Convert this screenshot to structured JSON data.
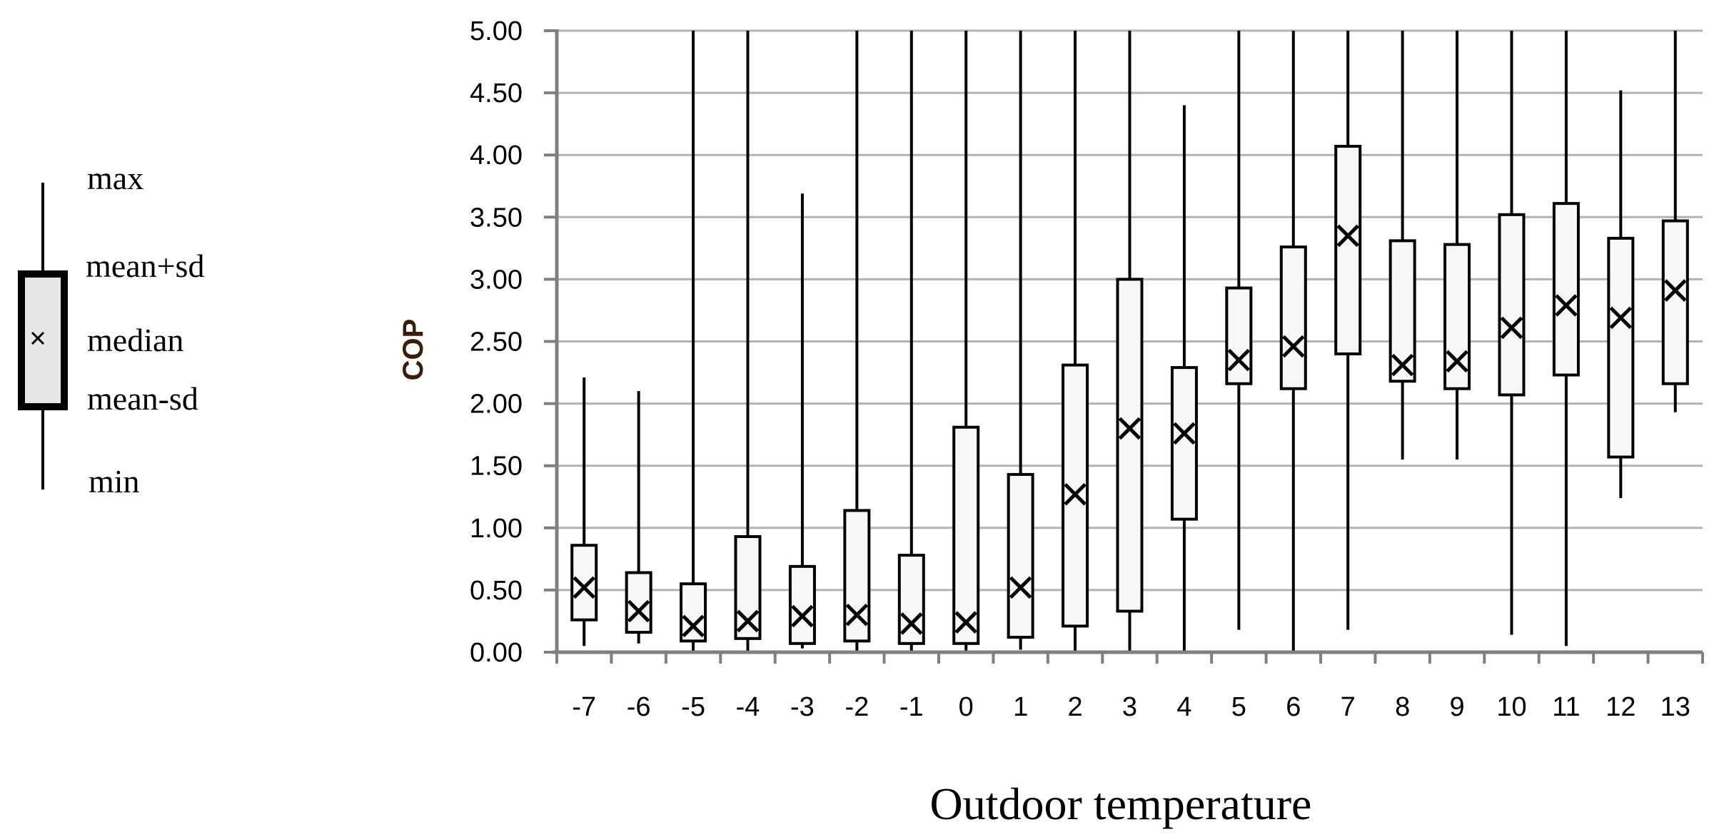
{
  "chart_data": {
    "type": "box",
    "xlabel": "Outdoor temperature",
    "ylabel": "COP",
    "ylim": [
      0,
      5
    ],
    "yticks": [
      "0.00",
      "0.50",
      "1.00",
      "1.50",
      "2.00",
      "2.50",
      "3.00",
      "3.50",
      "4.00",
      "4.50",
      "5.00"
    ],
    "grid": "horizontal",
    "categories": [
      "-7",
      "-6",
      "-5",
      "-4",
      "-3",
      "-2",
      "-1",
      "0",
      "1",
      "2",
      "3",
      "4",
      "5",
      "6",
      "7",
      "8",
      "9",
      "10",
      "11",
      "12",
      "13"
    ],
    "boxes": [
      {
        "min": 0.05,
        "q_low": 0.26,
        "median": 0.52,
        "q_high": 0.86,
        "max": 2.21
      },
      {
        "min": 0.07,
        "q_low": 0.16,
        "median": 0.33,
        "q_high": 0.64,
        "max": 2.1
      },
      {
        "min": 0.0,
        "q_low": 0.09,
        "median": 0.21,
        "q_high": 0.55,
        "max": 5.0
      },
      {
        "min": 0.0,
        "q_low": 0.11,
        "median": 0.25,
        "q_high": 0.93,
        "max": 5.0
      },
      {
        "min": 0.03,
        "q_low": 0.07,
        "median": 0.29,
        "q_high": 0.69,
        "max": 3.69
      },
      {
        "min": 0.0,
        "q_low": 0.09,
        "median": 0.3,
        "q_high": 1.14,
        "max": 5.0
      },
      {
        "min": 0.0,
        "q_low": 0.07,
        "median": 0.23,
        "q_high": 0.78,
        "max": 5.0
      },
      {
        "min": 0.0,
        "q_low": 0.07,
        "median": 0.24,
        "q_high": 1.81,
        "max": 5.0
      },
      {
        "min": 0.02,
        "q_low": 0.12,
        "median": 0.52,
        "q_high": 1.43,
        "max": 5.0
      },
      {
        "min": 0.0,
        "q_low": 0.21,
        "median": 1.27,
        "q_high": 2.31,
        "max": 5.0
      },
      {
        "min": 0.0,
        "q_low": 0.33,
        "median": 1.8,
        "q_high": 3.0,
        "max": 5.0
      },
      {
        "min": 0.0,
        "q_low": 1.07,
        "median": 1.76,
        "q_high": 2.29,
        "max": 4.4
      },
      {
        "min": 0.18,
        "q_low": 2.16,
        "median": 2.35,
        "q_high": 2.93,
        "max": 5.0
      },
      {
        "min": 0.0,
        "q_low": 2.12,
        "median": 2.46,
        "q_high": 3.26,
        "max": 5.0
      },
      {
        "min": 0.18,
        "q_low": 2.4,
        "median": 3.35,
        "q_high": 4.07,
        "max": 5.0
      },
      {
        "min": 1.55,
        "q_low": 2.18,
        "median": 2.31,
        "q_high": 3.31,
        "max": 5.0
      },
      {
        "min": 1.55,
        "q_low": 2.12,
        "median": 2.34,
        "q_high": 3.28,
        "max": 5.0
      },
      {
        "min": 0.14,
        "q_low": 2.07,
        "median": 2.61,
        "q_high": 3.52,
        "max": 5.0
      },
      {
        "min": 0.05,
        "q_low": 2.23,
        "median": 2.79,
        "q_high": 3.61,
        "max": 5.0
      },
      {
        "min": 1.24,
        "q_low": 1.57,
        "median": 2.69,
        "q_high": 3.33,
        "max": 4.52
      },
      {
        "min": 1.93,
        "q_low": 2.16,
        "median": 2.91,
        "q_high": 3.47,
        "max": 5.0
      }
    ],
    "legend": {
      "max": "max",
      "mean_plus_sd": "mean+sd",
      "median": "median",
      "mean_minus_sd": "mean-sd",
      "min": "min"
    },
    "colors": {
      "box_fill": "#f7f7f7",
      "legend_box_fill": "#e6e6e6",
      "grid": "#b3b3b3",
      "axis": "#7f7f7f",
      "ink": "#000000",
      "ylabel": "#3a1d06"
    }
  }
}
